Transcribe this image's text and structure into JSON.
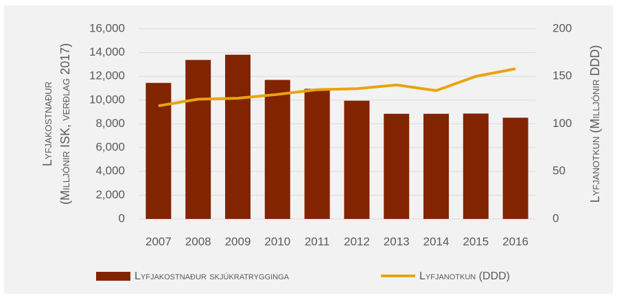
{
  "chart_data": {
    "type": "bar-line",
    "categories": [
      "2007",
      "2008",
      "2009",
      "2010",
      "2011",
      "2012",
      "2013",
      "2014",
      "2015",
      "2016"
    ],
    "y_label": [
      "Lyfjakostnaður",
      "(Milljónir ISK, verðlag 2017)"
    ],
    "y2_label": "Lyfjanotkun (Milljónir DDD)",
    "series": [
      {
        "name": "Lyfjakostnaður skjúkratrygginga",
        "type": "bar",
        "color": "#822400",
        "values": [
          11450,
          13380,
          13820,
          11700,
          10950,
          9950,
          8850,
          8850,
          8870,
          8520
        ]
      },
      {
        "name": "Lyfjanotkun (DDD)",
        "type": "line",
        "axis": "y2",
        "color": "#e8a40e",
        "values": [
          119,
          126,
          127,
          131,
          136,
          137,
          141,
          135,
          150,
          158
        ]
      }
    ],
    "ylim": [
      0,
      16000
    ],
    "yticks": [
      0,
      {
        "value": 2000,
        "label": "2,000"
      },
      {
        "value": 4000,
        "label": "4,000"
      },
      {
        "value": 6000,
        "label": "6,000"
      },
      {
        "value": 8000,
        "label": "8,000"
      },
      {
        "value": 10000,
        "label": "10,000"
      },
      {
        "value": 12000,
        "label": "12,000"
      },
      {
        "value": 14000,
        "label": "14,000"
      },
      {
        "value": 16000,
        "label": "16,000"
      }
    ],
    "y2lim": [
      0,
      200
    ],
    "y2ticks": [
      0,
      50,
      100,
      150,
      200
    ],
    "grid": true,
    "legend": "bottom"
  }
}
